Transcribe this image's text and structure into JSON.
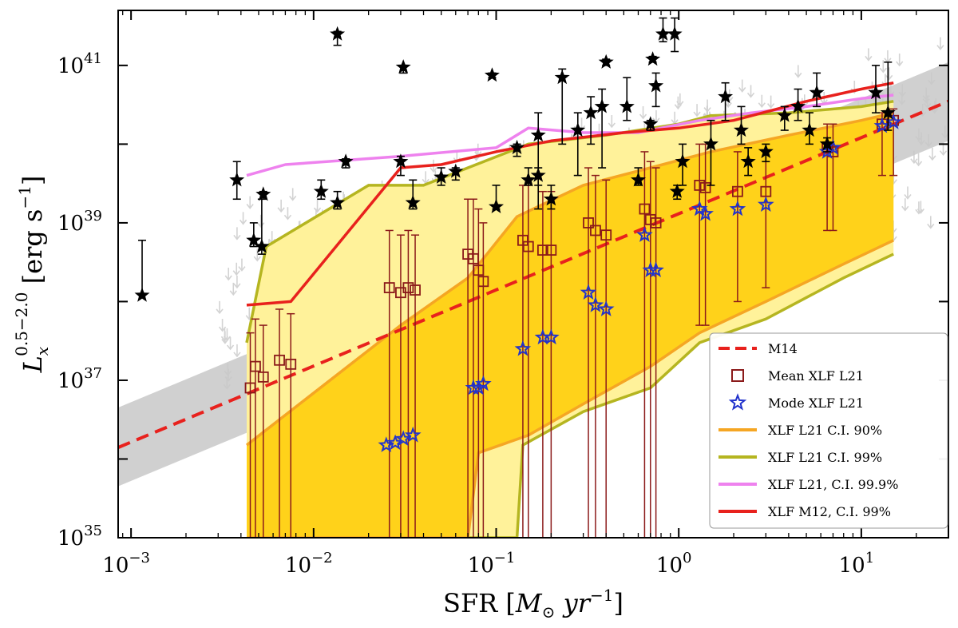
{
  "chart_data": {
    "type": "scatter",
    "title": "",
    "xlabel": {
      "base": "SFR [",
      "sym": "M",
      "sub": "⊙",
      "rest": " yr",
      "exp": "−1",
      "close": "]"
    },
    "ylabel": {
      "sym": "L",
      "sub": "x",
      "sup": "0.5−2.0",
      "rest": " [erg s",
      "exp": "−1",
      "close": "]"
    },
    "x_scale": "log",
    "y_scale": "log",
    "xlim": [
      0.00085,
      30
    ],
    "ylim": [
      1e+35,
      5e+41
    ],
    "x_ticks": [
      {
        "value": 0.001,
        "base": "10",
        "exp": "−3"
      },
      {
        "value": 0.01,
        "base": "10",
        "exp": "−2"
      },
      {
        "value": 0.1,
        "base": "10",
        "exp": "−1"
      },
      {
        "value": 1,
        "base": "10",
        "exp": "0"
      },
      {
        "value": 10,
        "base": "10",
        "exp": "1"
      }
    ],
    "y_ticks": [
      {
        "value": 1e+35,
        "base": "10",
        "exp": "35"
      },
      {
        "value": 1e+37,
        "base": "10",
        "exp": "37"
      },
      {
        "value": 1e+39,
        "base": "10",
        "exp": "39"
      },
      {
        "value": 1e+41,
        "base": "10",
        "exp": "41"
      }
    ],
    "legend_position": "bottom-right",
    "legend": [
      {
        "label": "M14",
        "style": "dashed-line",
        "color": "#e8211d"
      },
      {
        "label": "Mean XLF L21",
        "style": "open-square",
        "color": "#8b1a1a"
      },
      {
        "label": "Mode XLF L21",
        "style": "open-star",
        "color": "#2233cc"
      },
      {
        "label": "XLF L21 C.I. 90%",
        "style": "line",
        "color": "#f5a623"
      },
      {
        "label": "XLF L21 C.I. 99%",
        "style": "line",
        "color": "#b5b520"
      },
      {
        "label": "XLF L21, C.I. 99.9%",
        "style": "line",
        "color": "#ee82ee"
      },
      {
        "label": "XLF M12, C.I. 99%",
        "style": "line",
        "color": "#e8211d"
      }
    ],
    "series": [
      {
        "name": "M14",
        "kind": "line",
        "color": "#e8211d",
        "points": [
          [
            0.00085,
            1.4e+36
          ],
          [
            30,
            3.5e+40
          ]
        ]
      },
      {
        "name": "M14 scatter band",
        "kind": "band",
        "color": "#c8c8c8",
        "lower": [
          [
            0.00085,
            4.5e+35
          ],
          [
            30,
            1.1e+40
          ]
        ],
        "upper": [
          [
            0.00085,
            4.5e+36
          ],
          [
            30,
            1.1e+41
          ]
        ]
      },
      {
        "name": "XLF L21 C.I. 90%",
        "kind": "band",
        "color": "#f5a623",
        "fill": "#ffd21a",
        "lower": [
          [
            0.0043,
            1e+35
          ],
          [
            0.07,
            1e+35
          ],
          [
            0.08,
            1.2e+36
          ],
          [
            0.15,
            2e+36
          ],
          [
            0.3,
            5e+36
          ],
          [
            0.7,
            1.5e+37
          ],
          [
            1.3,
            4e+37
          ],
          [
            3,
            1e+38
          ],
          [
            8,
            3e+38
          ],
          [
            15,
            6e+38
          ]
        ],
        "upper": [
          [
            0.0043,
            1.5e+36
          ],
          [
            0.03,
            5e+37
          ],
          [
            0.07,
            2e+38
          ],
          [
            0.13,
            1.2e+39
          ],
          [
            0.3,
            3e+39
          ],
          [
            0.7,
            5e+39
          ],
          [
            1.5,
            8e+39
          ],
          [
            4,
            1.3e+40
          ],
          [
            10,
            2e+40
          ],
          [
            15,
            2.5e+40
          ]
        ]
      },
      {
        "name": "XLF L21 C.I. 99%",
        "kind": "band",
        "color": "#b5b520",
        "fill": "#fff29a",
        "lower": [
          [
            0.0043,
            1e+35
          ],
          [
            0.13,
            1e+35
          ],
          [
            0.14,
            1.5e+36
          ],
          [
            0.3,
            4e+36
          ],
          [
            0.7,
            8e+36
          ],
          [
            1.3,
            3e+37
          ],
          [
            3,
            6e+37
          ],
          [
            8,
            2e+38
          ],
          [
            15,
            4e+38
          ]
        ],
        "upper": [
          [
            0.0043,
            3e+37
          ],
          [
            0.0055,
            5e+38
          ],
          [
            0.02,
            3e+39
          ],
          [
            0.04,
            3e+39
          ],
          [
            0.07,
            5e+39
          ],
          [
            0.15,
            1e+40
          ],
          [
            0.4,
            1.3e+40
          ],
          [
            1,
            1.8e+40
          ],
          [
            1.5,
            2.3e+40
          ],
          [
            4,
            2.5e+40
          ],
          [
            10,
            3e+40
          ],
          [
            15,
            3.5e+40
          ]
        ]
      },
      {
        "name": "XLF L21, C.I. 99.9%",
        "kind": "line",
        "color": "#ee82ee",
        "points": [
          [
            0.0043,
            4e+39
          ],
          [
            0.007,
            5.5e+39
          ],
          [
            0.03,
            7e+39
          ],
          [
            0.1,
            9e+39
          ],
          [
            0.15,
            1.6e+40
          ],
          [
            0.3,
            1.4e+40
          ],
          [
            0.6,
            1.4e+40
          ],
          [
            1.3,
            2e+40
          ],
          [
            2.5,
            2.5e+40
          ],
          [
            5,
            3e+40
          ],
          [
            10,
            3.8e+40
          ],
          [
            15,
            4.2e+40
          ]
        ]
      },
      {
        "name": "XLF M12, C.I. 99%",
        "kind": "line",
        "color": "#e8211d",
        "points": [
          [
            0.0043,
            9e+37
          ],
          [
            0.0075,
            1e+38
          ],
          [
            0.03,
            5e+39
          ],
          [
            0.05,
            5.5e+39
          ],
          [
            0.1,
            8e+39
          ],
          [
            0.2,
            1.1e+40
          ],
          [
            0.5,
            1.4e+40
          ],
          [
            1,
            1.6e+40
          ],
          [
            2,
            2e+40
          ],
          [
            5,
            3.5e+40
          ],
          [
            10,
            5e+40
          ],
          [
            15,
            6e+40
          ]
        ]
      },
      {
        "name": "Mean XLF L21",
        "kind": "errorbar-square",
        "color": "#8b1a1a",
        "points": [
          [
            0.0045,
            8e+36,
            1e+35,
            4e+37
          ],
          [
            0.0048,
            1.5e+37,
            1e+35,
            6e+37
          ],
          [
            0.0053,
            1.1e+37,
            1e+35,
            5e+37
          ],
          [
            0.0065,
            1.8e+37,
            1e+35,
            8e+37
          ],
          [
            0.0075,
            1.6e+37,
            1e+35,
            7e+37
          ],
          [
            0.026,
            1.5e+38,
            1e+35,
            8e+38
          ],
          [
            0.03,
            1.3e+38,
            1e+35,
            7e+38
          ],
          [
            0.033,
            1.5e+38,
            1e+35,
            8e+38
          ],
          [
            0.036,
            1.4e+38,
            1e+35,
            7e+38
          ],
          [
            0.07,
            4e+38,
            1e+35,
            2e+39
          ],
          [
            0.075,
            3.5e+38,
            1e+35,
            2e+39
          ],
          [
            0.08,
            2.5e+38,
            1e+35,
            1.5e+39
          ],
          [
            0.085,
            1.8e+38,
            1e+35,
            1e+39
          ],
          [
            0.14,
            6e+38,
            1e+35,
            3e+39
          ],
          [
            0.15,
            5e+38,
            1e+35,
            3e+39
          ],
          [
            0.18,
            4.5e+38,
            1e+35,
            2.5e+39
          ],
          [
            0.2,
            4.5e+38,
            1e+35,
            2.5e+39
          ],
          [
            0.32,
            1e+39,
            1e+35,
            5e+39
          ],
          [
            0.35,
            8e+38,
            1e+35,
            4e+39
          ],
          [
            0.4,
            7e+38,
            1e+35,
            3.5e+39
          ],
          [
            0.65,
            1.5e+39,
            1e+35,
            8e+39
          ],
          [
            0.7,
            1.1e+39,
            1e+35,
            6e+39
          ],
          [
            0.75,
            1e+39,
            1e+35,
            5e+39
          ],
          [
            1.3,
            3e+39,
            5e+37,
            1e+40
          ],
          [
            1.4,
            2.8e+39,
            5e+37,
            1e+40
          ],
          [
            2.1,
            2.5e+39,
            1e+38,
            8e+39
          ],
          [
            3,
            2.5e+39,
            1.5e+38,
            8e+39
          ],
          [
            6.5,
            9e+39,
            8e+38,
            1.8e+40
          ],
          [
            7,
            8e+39,
            8e+38,
            1.8e+40
          ],
          [
            13,
            1.8e+40,
            4e+39,
            2.5e+40
          ],
          [
            15,
            2e+40,
            4e+39,
            2.8e+40
          ]
        ]
      },
      {
        "name": "Mode XLF L21",
        "kind": "star",
        "color": "#2233cc",
        "points": [
          [
            0.025,
            1.5e+36
          ],
          [
            0.028,
            1.6e+36
          ],
          [
            0.031,
            1.8e+36
          ],
          [
            0.035,
            2e+36
          ],
          [
            0.075,
            8e+36
          ],
          [
            0.08,
            8e+36
          ],
          [
            0.085,
            9e+36
          ],
          [
            0.14,
            2.5e+37
          ],
          [
            0.18,
            3.5e+37
          ],
          [
            0.2,
            3.5e+37
          ],
          [
            0.32,
            1.3e+38
          ],
          [
            0.35,
            9e+37
          ],
          [
            0.4,
            8e+37
          ],
          [
            0.65,
            7e+38
          ],
          [
            0.7,
            2.5e+38
          ],
          [
            0.75,
            2.5e+38
          ],
          [
            1.3,
            1.5e+39
          ],
          [
            1.4,
            1.3e+39
          ],
          [
            2.1,
            1.5e+39
          ],
          [
            3,
            1.7e+39
          ],
          [
            6.5,
            8e+39
          ],
          [
            7,
            9e+39
          ],
          [
            13,
            1.7e+40
          ],
          [
            15,
            1.9e+40
          ]
        ]
      },
      {
        "name": "Observed galaxies",
        "kind": "errorbar-star",
        "color": "#000000",
        "points": [
          [
            0.00115,
            1.2e+38,
            1.2e+38,
            6e+38
          ],
          [
            0.0038,
            3.5e+39,
            2e+39,
            6e+39
          ],
          [
            0.0047,
            6e+38,
            5e+38,
            1e+39
          ],
          [
            0.0052,
            5e+38,
            4e+38,
            2e+39
          ],
          [
            0.0053,
            2.3e+39,
            2e+39,
            2.5e+39
          ],
          [
            0.011,
            2.5e+39,
            2e+39,
            3.5e+39
          ],
          [
            0.0135,
            1.8e+39,
            1.5e+39,
            2.5e+39
          ],
          [
            0.0135,
            2.5e+41,
            1.8e+41,
            2.7e+41
          ],
          [
            0.015,
            6e+39,
            5e+39,
            6.5e+39
          ],
          [
            0.03,
            6e+39,
            4e+39,
            7e+39
          ],
          [
            0.031,
            9.5e+40,
            8e+40,
            1e+41
          ],
          [
            0.035,
            1.8e+39,
            1.5e+39,
            3.5e+39
          ],
          [
            0.05,
            3.8e+39,
            3e+39,
            5e+39
          ],
          [
            0.06,
            4.5e+39,
            3.5e+39,
            5e+39
          ],
          [
            0.095,
            7.5e+40,
            7e+40,
            8e+40
          ],
          [
            0.1,
            1.6e+39,
            1.5e+39,
            3e+39
          ],
          [
            0.13,
            9e+39,
            7e+39,
            1e+40
          ],
          [
            0.15,
            3.5e+39,
            3e+39,
            5e+39
          ],
          [
            0.17,
            4e+39,
            3e+39,
            5e+39
          ],
          [
            0.17,
            1.3e+40,
            1.5e+39,
            2.5e+40
          ],
          [
            0.2,
            2e+39,
            1.5e+39,
            3e+39
          ],
          [
            0.23,
            7e+40,
            1e+40,
            9e+40
          ],
          [
            0.28,
            1.5e+40,
            4e+39,
            2.5e+40
          ],
          [
            0.33,
            2.5e+40,
            1e+40,
            4e+40
          ],
          [
            0.38,
            3e+40,
            5e+39,
            5e+40
          ],
          [
            0.4,
            1.1e+41,
            1e+41,
            1.2e+41
          ],
          [
            0.52,
            3e+40,
            2e+40,
            7e+40
          ],
          [
            0.6,
            3.5e+39,
            3e+39,
            5e+39
          ],
          [
            0.7,
            1.8e+40,
            1.5e+40,
            2e+40
          ],
          [
            0.72,
            1.2e+41,
            1.1e+41,
            1.3e+41
          ],
          [
            0.75,
            5.5e+40,
            3e+40,
            8e+40
          ],
          [
            0.82,
            2.5e+41,
            2e+41,
            4e+41
          ],
          [
            0.95,
            2.5e+41,
            1.5e+41,
            4e+41
          ],
          [
            0.98,
            2.5e+39,
            2e+39,
            3e+39
          ],
          [
            1.05,
            6e+39,
            3e+39,
            1e+40
          ],
          [
            1.5,
            1e+40,
            3e+39,
            2e+40
          ],
          [
            1.8,
            4e+40,
            2e+40,
            6e+40
          ],
          [
            2.2,
            1.5e+40,
            1e+40,
            3e+40
          ],
          [
            2.4,
            6e+39,
            4e+39,
            9e+39
          ],
          [
            3,
            8e+39,
            6e+39,
            1e+40
          ],
          [
            3.8,
            2.3e+40,
            1.5e+40,
            3e+40
          ],
          [
            4.5,
            3e+40,
            2e+40,
            5e+40
          ],
          [
            5.2,
            1.5e+40,
            1e+40,
            2.5e+40
          ],
          [
            5.7,
            4.5e+40,
            3e+40,
            8e+40
          ],
          [
            6.5,
            1e+40,
            8e+39,
            1.2e+40
          ],
          [
            12,
            4.5e+40,
            2.5e+40,
            1e+41
          ],
          [
            14,
            2.5e+40,
            1.5e+40,
            1.1e+41
          ]
        ]
      },
      {
        "name": "Upper limits",
        "kind": "upper-limits",
        "color": "#d3d3d3",
        "x_range": [
          0.003,
          30
        ],
        "y_range": [
          1e+37,
          3e+41
        ],
        "count": 420
      }
    ]
  }
}
